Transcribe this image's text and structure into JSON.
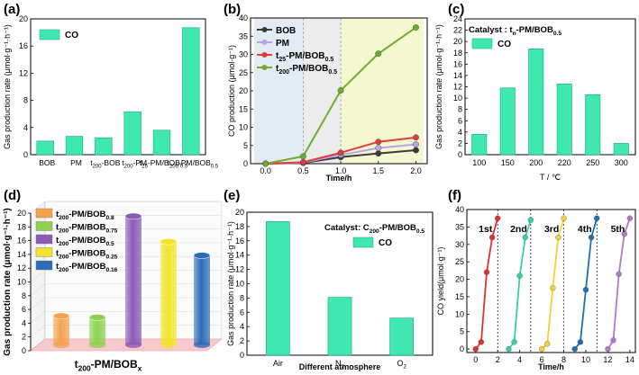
{
  "panel_labels": [
    "(a)",
    "(b)",
    "(c)",
    "(d)",
    "(e)",
    "(f)"
  ],
  "chart_data": [
    {
      "panel": "(a)",
      "type": "bar",
      "categories": [
        "BOB",
        "PM",
        "t200-BOB",
        "t200-PM",
        "t25-PM/BOB0.5",
        "t200-PM/BOB0.5"
      ],
      "category_labels": [
        [
          {
            "t": "BOB"
          }
        ],
        [
          {
            "t": "PM"
          }
        ],
        [
          {
            "t": "t"
          },
          {
            "t": "200",
            "sub": true
          },
          {
            "t": "-BOB"
          }
        ],
        [
          {
            "t": "t"
          },
          {
            "t": "200",
            "sub": true
          },
          {
            "t": "-PM"
          }
        ],
        [
          {
            "t": "t"
          },
          {
            "t": "25",
            "sub": true
          },
          {
            "t": "-PM/BOB"
          },
          {
            "t": "0.5",
            "sub": true
          }
        ],
        [
          {
            "t": "t"
          },
          {
            "t": "200",
            "sub": true
          },
          {
            "t": "-PM/BOB"
          },
          {
            "t": "0.5",
            "sub": true
          }
        ]
      ],
      "values": [
        2.0,
        2.7,
        2.5,
        6.3,
        3.6,
        18.7
      ],
      "legend": [
        "CO"
      ],
      "ylabel": "Gas production rate (μmol·g⁻¹·h⁻¹)",
      "ylim": [
        0,
        20
      ],
      "yticks": [
        0,
        4,
        8,
        12,
        16,
        20
      ],
      "color": "#3ee8b0"
    },
    {
      "panel": "(b)",
      "type": "line",
      "x": [
        0.0,
        0.5,
        1.0,
        1.5,
        2.0
      ],
      "xticks": [
        "0.0",
        "0.5",
        "1.0",
        "1.5",
        "2.0"
      ],
      "series": [
        {
          "name": "BOB",
          "label": [
            {
              "t": "BOB"
            }
          ],
          "values": [
            0,
            0.2,
            1.8,
            2.8,
            3.7
          ],
          "color": "#3a3a3a"
        },
        {
          "name": "PM",
          "label": [
            {
              "t": "PM"
            }
          ],
          "values": [
            0,
            0.3,
            2.4,
            4.3,
            5.3
          ],
          "color": "#b6a6e8"
        },
        {
          "name": "t25-PM/BOB0.5",
          "label": [
            {
              "t": "t"
            },
            {
              "t": "25",
              "sub": true
            },
            {
              "t": "-PM/BOB"
            },
            {
              "t": "0.5",
              "sub": true
            }
          ],
          "values": [
            0,
            0.4,
            3.0,
            6.0,
            7.2
          ],
          "color": "#e23b3b"
        },
        {
          "name": "t200-PM/BOB0.5",
          "label": [
            {
              "t": "t"
            },
            {
              "t": "200",
              "sub": true
            },
            {
              "t": "-PM/BOB"
            },
            {
              "t": "0.5",
              "sub": true
            }
          ],
          "values": [
            0,
            2.0,
            20.1,
            30.2,
            37.4
          ],
          "color": "#6fae2c"
        }
      ],
      "xlabel": "Time/h",
      "ylabel": "CO production (μmol·g⁻¹)",
      "ylim": [
        0,
        40
      ],
      "yticks": [
        0,
        5,
        10,
        15,
        20,
        25,
        30,
        35,
        40
      ],
      "shaded_regions": [
        {
          "from": -0.15,
          "to": 0.5,
          "color": "#e3ebf5"
        },
        {
          "from": 0.5,
          "to": 1.0,
          "color": "#ececec"
        },
        {
          "from": 1.0,
          "to": 2.1,
          "color": "#f4f7cf"
        }
      ]
    },
    {
      "panel": "(c)",
      "type": "bar",
      "title": "Catalyst : tn-PM/BOB0.5",
      "title_parts": [
        {
          "t": "Catalyst : t"
        },
        {
          "t": "n",
          "sub": true
        },
        {
          "t": "-PM/BOB"
        },
        {
          "t": "0.5",
          "sub": true
        }
      ],
      "categories": [
        "100",
        "150",
        "200",
        "220",
        "250",
        "300"
      ],
      "values": [
        3.6,
        11.8,
        18.7,
        12.5,
        10.6,
        2.0
      ],
      "legend": [
        "CO"
      ],
      "xlabel": "T / ℃",
      "ylabel": "Gas production rate (μmol·g⁻¹·h⁻¹)",
      "ylim": [
        0,
        24
      ],
      "yticks": [
        0,
        2,
        4,
        6,
        8,
        10,
        12,
        14,
        16,
        18,
        20,
        22,
        24
      ],
      "color": "#3ee8b0"
    },
    {
      "panel": "(d)",
      "type": "bar",
      "categories": [
        "t200-PM/BOB0.8",
        "t200-PM/BOB0.75",
        "t200-PM/BOB0.5",
        "t200-PM/BOB0.25",
        "t200-PM/BOB0.16"
      ],
      "legend_labels": [
        [
          {
            "t": "t"
          },
          {
            "t": "200",
            "sub": true
          },
          {
            "t": "-PM/BOB"
          },
          {
            "t": "0.8",
            "sub": true
          }
        ],
        [
          {
            "t": "t"
          },
          {
            "t": "200",
            "sub": true
          },
          {
            "t": "-PM/BOB"
          },
          {
            "t": "0.75",
            "sub": true
          }
        ],
        [
          {
            "t": "t"
          },
          {
            "t": "200",
            "sub": true
          },
          {
            "t": "-PM/BOB"
          },
          {
            "t": "0.5",
            "sub": true
          }
        ],
        [
          {
            "t": "t"
          },
          {
            "t": "200",
            "sub": true
          },
          {
            "t": "-PM/BOB"
          },
          {
            "t": "0.25",
            "sub": true
          }
        ],
        [
          {
            "t": "t"
          },
          {
            "t": "200",
            "sub": true
          },
          {
            "t": "-PM/BOB"
          },
          {
            "t": "0.16",
            "sub": true
          }
        ]
      ],
      "values": [
        4.2,
        4.0,
        18.7,
        15.0,
        13.0
      ],
      "colors": [
        "#f4a24e",
        "#8fd14f",
        "#8c59b5",
        "#f2e42a",
        "#2c6db5"
      ],
      "xlabel_parts": [
        {
          "t": "t"
        },
        {
          "t": "200",
          "sub": true
        },
        {
          "t": "-PM/BOB"
        },
        {
          "t": "x",
          "sub": true
        }
      ],
      "ylabel": "Gas production rate (μmol·g⁻¹·h⁻¹)",
      "ylim": [
        0,
        20
      ],
      "yticks": [
        0,
        2,
        4,
        6,
        8,
        10,
        12,
        14,
        16,
        18,
        20
      ]
    },
    {
      "panel": "(e)",
      "type": "bar",
      "title": "Catalyst: C200-PM/BOB0.5",
      "title_parts": [
        {
          "t": "Catalyst: C"
        },
        {
          "t": "200",
          "sub": true
        },
        {
          "t": "-PM/BOB"
        },
        {
          "t": "0.5",
          "sub": true
        }
      ],
      "categories": [
        "Air",
        "N2",
        "O2"
      ],
      "category_labels": [
        [
          {
            "t": "Air"
          }
        ],
        [
          {
            "t": "N"
          },
          {
            "t": "2",
            "sub": true
          }
        ],
        [
          {
            "t": "O"
          },
          {
            "t": "2",
            "sub": true
          }
        ]
      ],
      "values": [
        18.7,
        8.1,
        5.2
      ],
      "legend": [
        "CO"
      ],
      "xlabel": "Different atmosphere",
      "ylabel": "Gas production rate (μmol·g⁻¹·h⁻¹)",
      "ylim": [
        0,
        20
      ],
      "yticks": [
        0,
        2,
        4,
        6,
        8,
        10,
        12,
        14,
        16,
        18,
        20
      ],
      "color": "#3ee8b0"
    },
    {
      "panel": "(f)",
      "type": "line",
      "series": [
        {
          "name": "1st",
          "x": [
            0,
            0.5,
            1,
            1.5,
            2
          ],
          "y": [
            0,
            2.0,
            22.0,
            32.0,
            37.5
          ],
          "color": "#e03030"
        },
        {
          "name": "2nd",
          "x": [
            3,
            3.5,
            4,
            4.5,
            5
          ],
          "y": [
            0,
            2.0,
            21.0,
            32.0,
            37.0
          ],
          "color": "#35d09a"
        },
        {
          "name": "3rd",
          "x": [
            6,
            6.5,
            7,
            7.5,
            8
          ],
          "y": [
            0,
            1.5,
            17.5,
            32.0,
            37.5
          ],
          "color": "#f0d23a"
        },
        {
          "name": "4th",
          "x": [
            9,
            9.5,
            10,
            10.5,
            11
          ],
          "y": [
            0,
            2.0,
            17.0,
            32.0,
            37.5
          ],
          "color": "#1f6fb5"
        },
        {
          "name": "5th",
          "x": [
            12,
            12.5,
            13,
            13.5,
            14
          ],
          "y": [
            0,
            2.5,
            21.5,
            33.0,
            37.5
          ],
          "color": "#b07ac8"
        }
      ],
      "cycle_dividers": [
        2,
        5,
        8,
        11
      ],
      "xlabel": "Time/h",
      "ylabel": "CO yield(μmol·g⁻¹)",
      "xlim": [
        -0.8,
        14.5
      ],
      "ylim": [
        -1,
        40
      ],
      "xticks": [
        0,
        2,
        4,
        6,
        8,
        10,
        12,
        14
      ],
      "yticks": [
        0,
        5,
        10,
        15,
        20,
        25,
        30,
        35,
        40
      ]
    }
  ]
}
